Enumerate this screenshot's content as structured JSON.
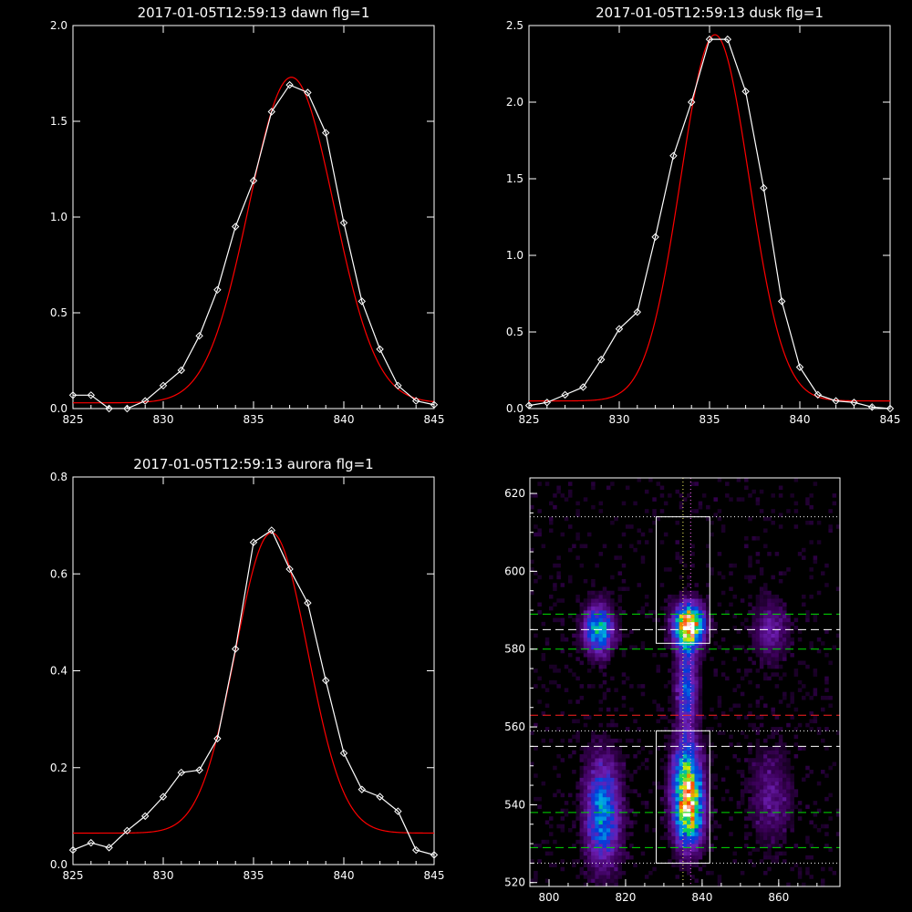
{
  "chart_data": [
    {
      "type": "line",
      "title": "2017-01-05T12:59:13 dawn flg=1",
      "xlim": [
        825,
        845
      ],
      "ylim": [
        0,
        2.0
      ],
      "xticks": [
        825,
        830,
        835,
        840,
        845
      ],
      "yticks": [
        0.0,
        0.5,
        1.0,
        1.5,
        2.0
      ],
      "ytick_labels": [
        "0.0",
        "0.5",
        "1.0",
        "1.5",
        "2.0"
      ],
      "series": [
        {
          "x": [
            825,
            826,
            827,
            828,
            829,
            830,
            831,
            832,
            833,
            834,
            835,
            836,
            837,
            838,
            839,
            840,
            841,
            842,
            843,
            844,
            845
          ],
          "y": [
            0.07,
            0.07,
            0.0,
            0.0,
            0.04,
            0.12,
            0.2,
            0.38,
            0.62,
            0.95,
            1.19,
            1.55,
            1.69,
            1.65,
            1.44,
            0.97,
            0.56,
            0.31,
            0.12,
            0.04,
            0.02
          ],
          "color": "#ffffff",
          "marker": "diamond"
        },
        {
          "fit": {
            "a": 1.7,
            "mu": 837.1,
            "sigma": 2.35,
            "c": 0.03
          },
          "color": "#ff0000"
        }
      ]
    },
    {
      "type": "line",
      "title": "2017-01-05T12:59:13 dusk flg=1",
      "xlim": [
        825,
        845
      ],
      "ylim": [
        0,
        2.5
      ],
      "xticks": [
        825,
        830,
        835,
        840,
        845
      ],
      "yticks": [
        0.0,
        0.5,
        1.0,
        1.5,
        2.0,
        2.5
      ],
      "ytick_labels": [
        "0.0",
        "0.5",
        "1.0",
        "1.5",
        "2.0",
        "2.5"
      ],
      "series": [
        {
          "x": [
            825,
            826,
            827,
            828,
            829,
            830,
            831,
            832,
            833,
            834,
            835,
            836,
            837,
            838,
            839,
            840,
            841,
            842,
            843,
            844,
            845
          ],
          "y": [
            0.02,
            0.04,
            0.09,
            0.14,
            0.32,
            0.52,
            0.63,
            1.12,
            1.65,
            2.0,
            2.41,
            2.41,
            2.07,
            1.44,
            0.7,
            0.27,
            0.09,
            0.05,
            0.04,
            0.01,
            0.0
          ],
          "color": "#ffffff",
          "marker": "diamond"
        },
        {
          "fit": {
            "a": 2.39,
            "mu": 835.3,
            "sigma": 1.9,
            "c": 0.05
          },
          "color": "#ff0000"
        }
      ]
    },
    {
      "type": "line",
      "title": "2017-01-05T12:59:13 aurora flg=1",
      "xlim": [
        825,
        845
      ],
      "ylim": [
        0,
        0.8
      ],
      "xticks": [
        825,
        830,
        835,
        840,
        845
      ],
      "yticks": [
        0.0,
        0.2,
        0.4,
        0.6,
        0.8
      ],
      "ytick_labels": [
        "0.0",
        "0.2",
        "0.4",
        "0.6",
        "0.8"
      ],
      "series": [
        {
          "x": [
            825,
            826,
            827,
            828,
            829,
            830,
            831,
            832,
            833,
            834,
            835,
            836,
            837,
            838,
            839,
            840,
            841,
            842,
            843,
            844,
            845
          ],
          "y": [
            0.03,
            0.045,
            0.035,
            0.07,
            0.1,
            0.14,
            0.19,
            0.195,
            0.26,
            0.445,
            0.665,
            0.69,
            0.61,
            0.54,
            0.38,
            0.23,
            0.155,
            0.14,
            0.11,
            0.03,
            0.02
          ],
          "color": "#ffffff",
          "marker": "diamond"
        },
        {
          "fit": {
            "a": 0.62,
            "mu": 836.0,
            "sigma": 2.0,
            "c": 0.065
          },
          "color": "#ff0000"
        }
      ]
    },
    {
      "type": "heatmap",
      "xlim": [
        795,
        876
      ],
      "ylim": [
        519,
        624
      ],
      "xticks": [
        800,
        820,
        840,
        860
      ],
      "yticks": [
        520,
        540,
        560,
        580,
        600,
        620
      ],
      "blobs": [
        {
          "x": 836.5,
          "y": 586,
          "sx": 2.5,
          "sy": 3.5,
          "a": 1.0
        },
        {
          "x": 836.5,
          "y": 538,
          "sx": 2.5,
          "sy": 6,
          "a": 0.75
        },
        {
          "x": 836,
          "y": 548,
          "sx": 2.5,
          "sy": 6,
          "a": 0.5
        },
        {
          "x": 836,
          "y": 570,
          "sx": 1.8,
          "sy": 8,
          "a": 0.35
        },
        {
          "x": 813,
          "y": 585,
          "sx": 2.5,
          "sy": 4,
          "a": 0.55
        },
        {
          "x": 814,
          "y": 538,
          "sx": 3,
          "sy": 9,
          "a": 0.45
        },
        {
          "x": 858,
          "y": 585,
          "sx": 3,
          "sy": 5,
          "a": 0.18
        },
        {
          "x": 858,
          "y": 542,
          "sx": 3.5,
          "sy": 8,
          "a": 0.15
        }
      ],
      "white_boxes": [
        [
          828,
          581.5,
          842,
          614
        ],
        [
          828,
          525,
          842,
          559
        ]
      ],
      "dotted_v": [
        {
          "x": 835,
          "color": "#ffff66"
        },
        {
          "x": 837,
          "color": "#ff66ff"
        }
      ],
      "dotted_h": [
        614,
        559,
        525
      ],
      "dashed_h": [
        {
          "y": 589,
          "color": "#00dd00"
        },
        {
          "y": 585,
          "color": "#ffffff"
        },
        {
          "y": 580,
          "color": "#00dd00"
        },
        {
          "y": 563,
          "color": "#ff2020"
        },
        {
          "y": 555,
          "color": "#ffffff"
        },
        {
          "y": 538,
          "color": "#00dd00"
        },
        {
          "y": 529,
          "color": "#00dd00"
        }
      ]
    }
  ]
}
